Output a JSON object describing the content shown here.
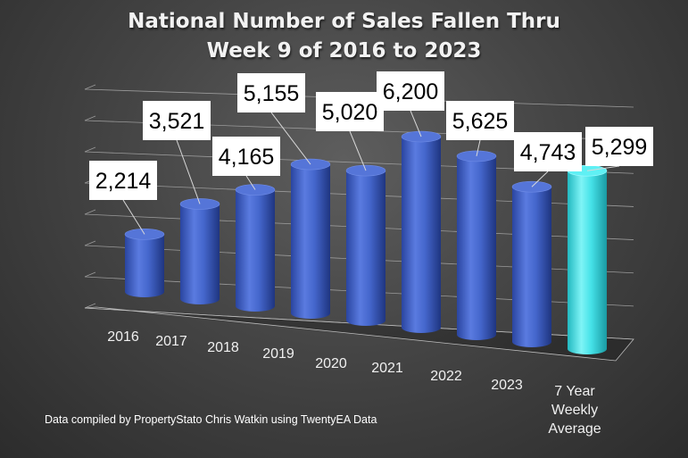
{
  "chart_data": {
    "type": "bar",
    "title_line1": "National Number of Sales Fallen Thru",
    "title_line2": "Week 9 of 2016 to 2023",
    "categories": [
      "2016",
      "2017",
      "2018",
      "2019",
      "2020",
      "2021",
      "2022",
      "2023",
      "7 Year Weekly Average"
    ],
    "category_lines": [
      [
        "2016"
      ],
      [
        "2017"
      ],
      [
        "2018"
      ],
      [
        "2019"
      ],
      [
        "2020"
      ],
      [
        "2021"
      ],
      [
        "2022"
      ],
      [
        "2023"
      ],
      [
        "7 Year",
        "Weekly",
        "Average"
      ]
    ],
    "values": [
      2214,
      3521,
      4165,
      5155,
      5020,
      6200,
      5625,
      4743,
      5299
    ],
    "value_labels": [
      "2,214",
      "3,521",
      "4,165",
      "5,155",
      "5,020",
      "6,200",
      "5,625",
      "4,743",
      "5,299"
    ],
    "bar_colors": [
      "#3d5fc4",
      "#3d5fc4",
      "#3d5fc4",
      "#3d5fc4",
      "#3d5fc4",
      "#3d5fc4",
      "#3d5fc4",
      "#3d5fc4",
      "#40e0e6"
    ],
    "style": "3d-cylinder",
    "ylim": [
      0,
      7000
    ],
    "grid": true,
    "legend": "none"
  },
  "footnote": "Data compiled by PropertyStato Chris Watkin using TwentyEA Data"
}
